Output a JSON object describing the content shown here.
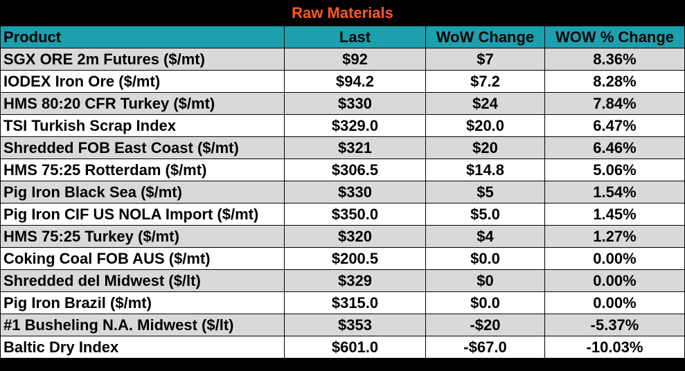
{
  "title": "Raw Materials",
  "headers": {
    "product": "Product",
    "last": "Last",
    "wow_change": "WoW Change",
    "wow_pct": "WOW % Change"
  },
  "rows": [
    {
      "product": "SGX ORE 2m Futures ($/mt)",
      "last": "$92",
      "change": "$7",
      "pct": "8.36%"
    },
    {
      "product": "IODEX  Iron Ore ($/mt)",
      "last": "$94.2",
      "change": "$7.2",
      "pct": "8.28%"
    },
    {
      "product": "HMS 80:20 CFR Turkey ($/mt)",
      "last": "$330",
      "change": "$24",
      "pct": "7.84%"
    },
    {
      "product": "TSI Turkish Scrap Index",
      "last": "$329.0",
      "change": "$20.0",
      "pct": "6.47%"
    },
    {
      "product": "Shredded FOB East Coast ($/mt)",
      "last": "$321",
      "change": "$20",
      "pct": "6.46%"
    },
    {
      "product": "HMS 75:25 Rotterdam ($/mt)",
      "last": "$306.5",
      "change": "$14.8",
      "pct": "5.06%"
    },
    {
      "product": "Pig Iron Black Sea ($/mt)",
      "last": "$330",
      "change": "$5",
      "pct": "1.54%"
    },
    {
      "product": "Pig Iron CIF US NOLA Import ($/mt)",
      "last": "$350.0",
      "change": "$5.0",
      "pct": "1.45%"
    },
    {
      "product": "HMS 75:25 Turkey ($/mt)",
      "last": "$320",
      "change": "$4",
      "pct": "1.27%"
    },
    {
      "product": "Coking Coal FOB AUS ($/mt)",
      "last": "$200.5",
      "change": "$0.0",
      "pct": "0.00%"
    },
    {
      "product": "Shredded del  Midwest ($/lt)",
      "last": "$329",
      "change": "$0",
      "pct": "0.00%"
    },
    {
      "product": "Pig Iron Brazil ($/mt)",
      "last": "$315.0",
      "change": "$0.0",
      "pct": "0.00%"
    },
    {
      "product": "#1 Busheling N.A. Midwest ($/lt)",
      "last": "$353",
      "change": "-$20",
      "pct": "-5.37%"
    },
    {
      "product": "Baltic Dry Index",
      "last": "$601.0",
      "change": "-$67.0",
      "pct": "-10.03%"
    }
  ]
}
